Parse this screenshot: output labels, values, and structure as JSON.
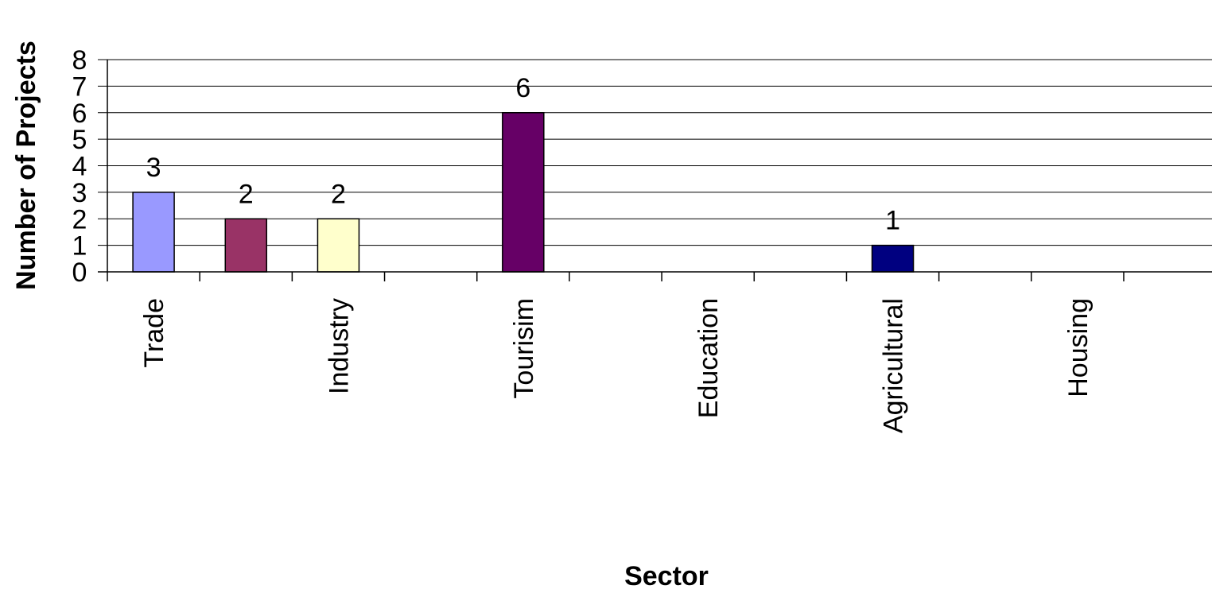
{
  "chart_data": {
    "type": "bar",
    "categories": [
      "Trade",
      "",
      "Industry",
      "",
      "Tourisim",
      "",
      "Education",
      "",
      "Agricultural",
      "",
      "Housing"
    ],
    "values": [
      3,
      2,
      2,
      0,
      6,
      0,
      0,
      0,
      1,
      0,
      0
    ],
    "data_labels": [
      "3",
      "2",
      "2",
      "",
      "6",
      "",
      "",
      "",
      "1",
      "",
      ""
    ],
    "colors": [
      "#9999ff",
      "#993366",
      "#ffffcc",
      "#ccffff",
      "#660066",
      "#ff8080",
      "#0066cc",
      "#ccccff",
      "#000080",
      "#ff00ff",
      "#ffff00"
    ],
    "title": "",
    "xlabel": "Sector",
    "ylabel": "Number of Projects",
    "ylim": [
      0,
      8
    ],
    "yticks": [
      "0",
      "1",
      "2",
      "3",
      "4",
      "5",
      "6",
      "7",
      "8"
    ],
    "grid": true,
    "legend": "none"
  }
}
